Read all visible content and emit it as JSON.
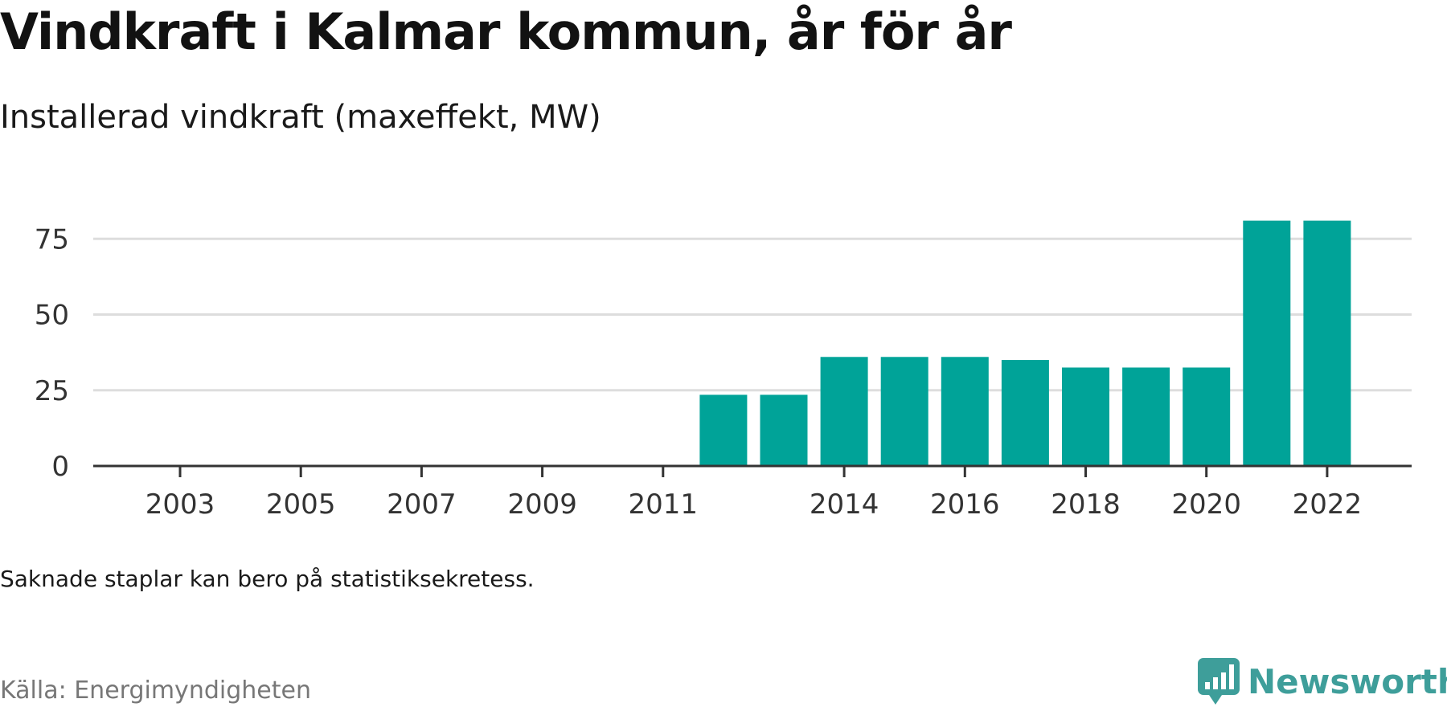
{
  "title": "Vindkraft i Kalmar kommun, år för år",
  "subtitle": "Installerad vindkraft (maxeffekt, MW)",
  "note": "Saknade staplar kan bero på statistiksekretess.",
  "source": "Källa: Energimyndigheten",
  "brand": {
    "name": "Newsworthy",
    "color": "#3e9e9a",
    "icon": "newsworthy-logo-icon"
  },
  "colors": {
    "bar": "#00a398",
    "grid": "#dddddd",
    "axis": "#333333"
  },
  "chart_data": {
    "type": "bar",
    "categories": [
      2003,
      2004,
      2005,
      2006,
      2007,
      2008,
      2009,
      2010,
      2011,
      2012,
      2013,
      2014,
      2015,
      2016,
      2017,
      2018,
      2019,
      2020,
      2021,
      2022
    ],
    "values": [
      null,
      null,
      null,
      null,
      null,
      null,
      null,
      null,
      null,
      23.5,
      23.5,
      36,
      36,
      36,
      35,
      32.5,
      32.5,
      32.5,
      81,
      81
    ],
    "x_ticks": [
      2003,
      2005,
      2007,
      2009,
      2011,
      2014,
      2016,
      2018,
      2020,
      2022
    ],
    "y_ticks": [
      0,
      25,
      50,
      75
    ],
    "ylim": [
      0,
      85
    ],
    "grid": true,
    "legend": "none",
    "title": "Vindkraft i Kalmar kommun, år för år",
    "xlabel": "",
    "ylabel": ""
  }
}
